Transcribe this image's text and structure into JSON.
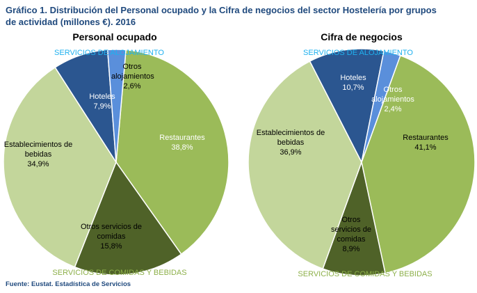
{
  "title": "Gráfico 1. Distribución del Personal ocupado y la Cifra de negocios del sector Hostelería por grupos de actividad (millones €). 2016",
  "source": "Fuente: Eustat.  Estadística  de Servicios",
  "chart_data": [
    {
      "type": "pie",
      "title": "Personal ocupado",
      "categories": [
        "Restaurantes",
        "Otros servicios de comidas",
        "Establecimientos de bebidas",
        "Hoteles",
        "Otros alojamientos"
      ],
      "values": [
        38.8,
        15.8,
        34.9,
        7.9,
        2.6
      ],
      "value_labels": [
        "38,8%",
        "15,8%",
        "34,9%",
        "7,9%",
        "2,6%"
      ],
      "colors": [
        "#9bbb59",
        "#4f6228",
        "#c3d69b",
        "#2b5690",
        "#5a8fdb"
      ],
      "annotations": [
        {
          "text": "SERVICIOS DE ALOJAMIENTO",
          "color": "#1fb1ef"
        },
        {
          "text": "SERVICIOS DE COMIDAS Y BEBIDAS",
          "color": "#8db04a"
        }
      ]
    },
    {
      "type": "pie",
      "title": "Cifra de negocios",
      "categories": [
        "Restaurantes",
        "Otros servicios de comidas",
        "Establecimientos de bebidas",
        "Hoteles",
        "Otros alojamientos"
      ],
      "values": [
        41.1,
        8.9,
        36.9,
        10.7,
        2.4
      ],
      "value_labels": [
        "41,1%",
        "8,9%",
        "36,9%",
        "10,7%",
        "2,4%"
      ],
      "colors": [
        "#9bbb59",
        "#4f6228",
        "#c3d69b",
        "#2b5690",
        "#5a8fdb"
      ],
      "annotations": [
        {
          "text": "SERVICIOS DE ALOJAMIENTO",
          "color": "#1fb1ef"
        },
        {
          "text": "SERVICIOS DE COMIDAS Y BEBIDAS",
          "color": "#8db04a"
        }
      ]
    }
  ]
}
